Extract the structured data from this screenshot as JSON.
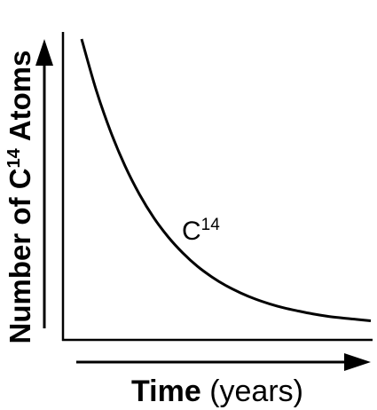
{
  "chart_data": {
    "type": "line",
    "title": "",
    "xlabel": {
      "bold": "Time",
      "regular": "(years)"
    },
    "ylabel": {
      "prefix": "Number of C",
      "superscript": "14",
      "suffix": " Atoms"
    },
    "xlim": [
      0,
      10
    ],
    "ylim": [
      0,
      1
    ],
    "ticks": "none",
    "grid": false,
    "legend": "none",
    "series": [
      {
        "label": {
          "base": "C",
          "superscript": "14"
        },
        "color": "#000000",
        "x": [
          0,
          0.5,
          1,
          1.5,
          2,
          2.5,
          3,
          3.5,
          4,
          4.5,
          5,
          5.5,
          6,
          6.5,
          7,
          7.5,
          8,
          8.5,
          9,
          9.5,
          10
        ],
        "y": [
          1.0,
          0.824,
          0.679,
          0.559,
          0.46,
          0.378,
          0.311,
          0.256,
          0.21,
          0.173,
          0.142,
          0.117,
          0.096,
          0.079,
          0.065,
          0.054,
          0.044,
          0.036,
          0.03,
          0.025,
          0.02
        ]
      }
    ]
  }
}
